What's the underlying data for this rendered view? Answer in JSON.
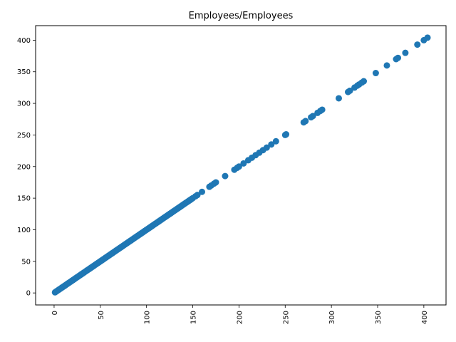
{
  "chart_data": {
    "type": "scatter",
    "title": "Employees/Employees",
    "xlabel": "",
    "ylabel": "",
    "xlim": [
      -20,
      424
    ],
    "ylim": [
      -19,
      423
    ],
    "xticks": [
      "0",
      "50",
      "100",
      "150",
      "200",
      "250",
      "300",
      "350",
      "400"
    ],
    "yticks": [
      "0",
      "50",
      "100",
      "150",
      "200",
      "250",
      "300",
      "350",
      "400"
    ],
    "xtick_rotation": 90,
    "grid": false,
    "marker_color": "#1f77b4",
    "series": [
      {
        "x": [
          1,
          2,
          3,
          4,
          5,
          6,
          7,
          8,
          9,
          10,
          11,
          12,
          13,
          14,
          15,
          16,
          17,
          18,
          19,
          20,
          21,
          22,
          23,
          24,
          25,
          26,
          27,
          28,
          29,
          30,
          31,
          32,
          33,
          34,
          35,
          36,
          37,
          38,
          39,
          40,
          41,
          42,
          43,
          44,
          45,
          46,
          47,
          48,
          49,
          50,
          51,
          52,
          53,
          54,
          55,
          56,
          57,
          58,
          59,
          60,
          61,
          62,
          63,
          64,
          65,
          66,
          67,
          68,
          69,
          70,
          71,
          72,
          73,
          74,
          75,
          76,
          77,
          78,
          79,
          80,
          81,
          82,
          83,
          84,
          85,
          86,
          87,
          88,
          89,
          90,
          91,
          92,
          93,
          94,
          95,
          96,
          97,
          98,
          99,
          100,
          101,
          102,
          103,
          104,
          105,
          106,
          107,
          108,
          109,
          110,
          111,
          112,
          113,
          114,
          115,
          116,
          117,
          118,
          119,
          120,
          121,
          122,
          123,
          124,
          125,
          126,
          127,
          128,
          129,
          130,
          131,
          132,
          133,
          134,
          135,
          136,
          137,
          138,
          139,
          140,
          141,
          142,
          143,
          144,
          145,
          146,
          147,
          148,
          149,
          150,
          153,
          155,
          160,
          168,
          170,
          173,
          175,
          185,
          195,
          198,
          200,
          205,
          210,
          214,
          218,
          222,
          226,
          230,
          235,
          240,
          250,
          251,
          270,
          272,
          278,
          280,
          285,
          288,
          290,
          308,
          318,
          320,
          325,
          328,
          330,
          333,
          335,
          348,
          360,
          370,
          372,
          380,
          393,
          400,
          404
        ],
        "y": [
          1,
          2,
          3,
          4,
          5,
          6,
          7,
          8,
          9,
          10,
          11,
          12,
          13,
          14,
          15,
          16,
          17,
          18,
          19,
          20,
          21,
          22,
          23,
          24,
          25,
          26,
          27,
          28,
          29,
          30,
          31,
          32,
          33,
          34,
          35,
          36,
          37,
          38,
          39,
          40,
          41,
          42,
          43,
          44,
          45,
          46,
          47,
          48,
          49,
          50,
          51,
          52,
          53,
          54,
          55,
          56,
          57,
          58,
          59,
          60,
          61,
          62,
          63,
          64,
          65,
          66,
          67,
          68,
          69,
          70,
          71,
          72,
          73,
          74,
          75,
          76,
          77,
          78,
          79,
          80,
          81,
          82,
          83,
          84,
          85,
          86,
          87,
          88,
          89,
          90,
          91,
          92,
          93,
          94,
          95,
          96,
          97,
          98,
          99,
          100,
          101,
          102,
          103,
          104,
          105,
          106,
          107,
          108,
          109,
          110,
          111,
          112,
          113,
          114,
          115,
          116,
          117,
          118,
          119,
          120,
          121,
          122,
          123,
          124,
          125,
          126,
          127,
          128,
          129,
          130,
          131,
          132,
          133,
          134,
          135,
          136,
          137,
          138,
          139,
          140,
          141,
          142,
          143,
          144,
          145,
          146,
          147,
          148,
          149,
          150,
          153,
          155,
          160,
          168,
          170,
          173,
          175,
          185,
          195,
          198,
          200,
          205,
          210,
          214,
          218,
          222,
          226,
          230,
          235,
          240,
          250,
          251,
          270,
          272,
          278,
          280,
          285,
          288,
          290,
          308,
          318,
          320,
          325,
          328,
          330,
          333,
          335,
          348,
          360,
          370,
          372,
          380,
          393,
          400,
          404
        ]
      }
    ]
  }
}
